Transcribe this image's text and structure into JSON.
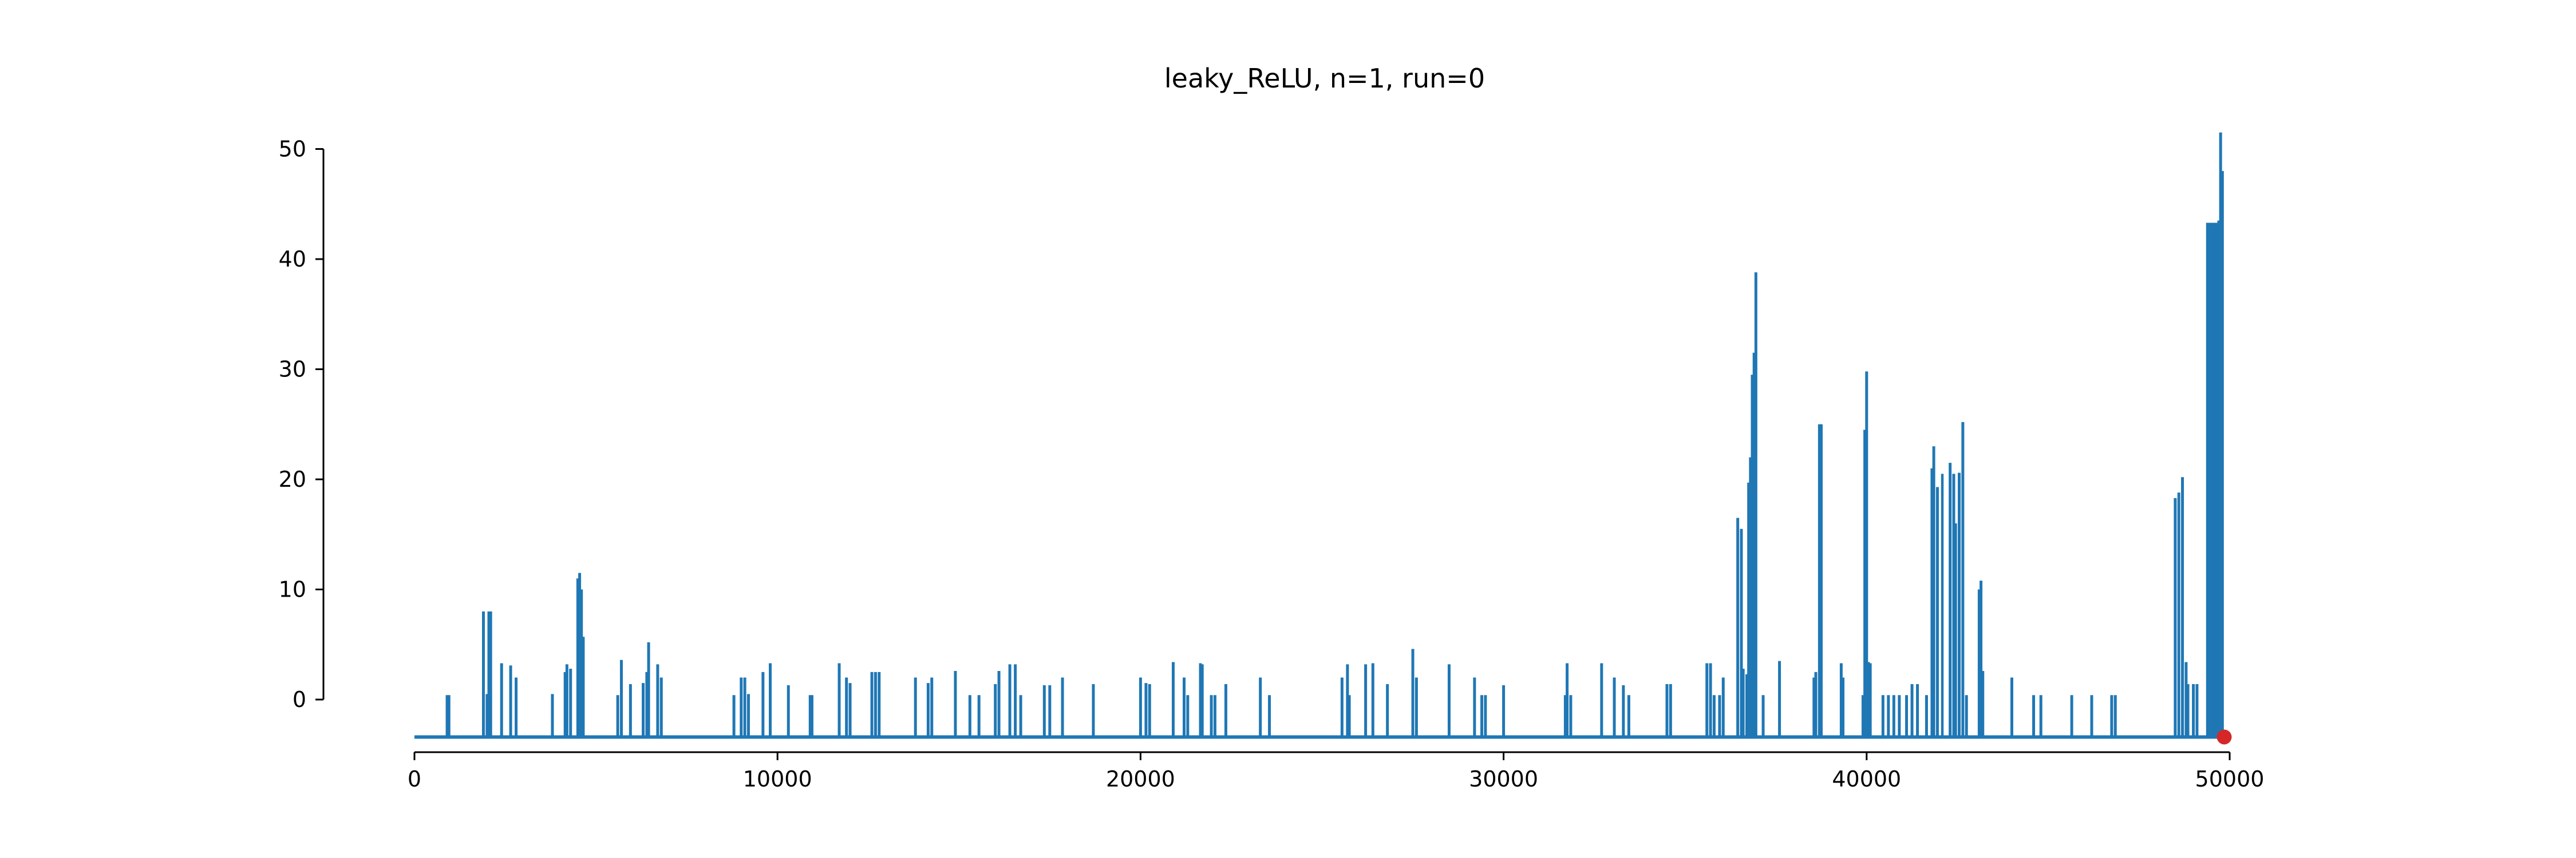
{
  "chart_data": {
    "type": "line",
    "title": "leaky_ReLU, n=1, run=0",
    "xlabel": "",
    "ylabel": "",
    "xlim": [
      0,
      50000
    ],
    "ylim": [
      -3.4,
      51.5
    ],
    "x_ticks": [
      0,
      10000,
      20000,
      30000,
      40000,
      50000
    ],
    "x_tick_labels": [
      "0",
      "10000",
      "20000",
      "30000",
      "40000",
      "50000"
    ],
    "y_ticks": [
      0,
      10,
      20,
      30,
      40,
      50
    ],
    "y_tick_labels": [
      "0",
      "10",
      "20",
      "30",
      "40",
      "50"
    ],
    "grid": false,
    "baseline": -3.4,
    "series": [
      {
        "color": "#1f77b4",
        "spikes": [
          [
            900,
            0.4
          ],
          [
            950,
            0.4
          ],
          [
            1900,
            8
          ],
          [
            2000,
            0.5
          ],
          [
            2050,
            8
          ],
          [
            2100,
            8
          ],
          [
            2400,
            3.3
          ],
          [
            2650,
            3.1
          ],
          [
            2800,
            2
          ],
          [
            3800,
            0.5
          ],
          [
            4150,
            2.5
          ],
          [
            4200,
            3.2
          ],
          [
            4300,
            2.8
          ],
          [
            4500,
            11
          ],
          [
            4550,
            11.5
          ],
          [
            4600,
            10
          ],
          [
            4650,
            5.7
          ],
          [
            5600,
            0.4
          ],
          [
            5700,
            3.6
          ],
          [
            5950,
            1.4
          ],
          [
            6300,
            1.5
          ],
          [
            6400,
            2.5
          ],
          [
            6450,
            5.2
          ],
          [
            6700,
            3.2
          ],
          [
            6800,
            2
          ],
          [
            8800,
            0.4
          ],
          [
            9000,
            2
          ],
          [
            9100,
            2
          ],
          [
            9200,
            0.5
          ],
          [
            9600,
            2.5
          ],
          [
            9800,
            3.3
          ],
          [
            10300,
            1.3
          ],
          [
            10900,
            0.4
          ],
          [
            10950,
            0.4
          ],
          [
            11700,
            3.3
          ],
          [
            11900,
            2
          ],
          [
            12000,
            1.5
          ],
          [
            12600,
            2.5
          ],
          [
            12700,
            2.5
          ],
          [
            12800,
            2.5
          ],
          [
            13800,
            2
          ],
          [
            14150,
            1.5
          ],
          [
            14250,
            2
          ],
          [
            14900,
            2.6
          ],
          [
            15300,
            0.4
          ],
          [
            15550,
            0.4
          ],
          [
            16000,
            1.4
          ],
          [
            16100,
            2.6
          ],
          [
            16400,
            3.2
          ],
          [
            16550,
            3.2
          ],
          [
            16700,
            0.4
          ],
          [
            17350,
            1.3
          ],
          [
            17500,
            1.3
          ],
          [
            17850,
            2
          ],
          [
            18700,
            1.4
          ],
          [
            20000,
            2
          ],
          [
            20150,
            1.5
          ],
          [
            20250,
            1.4
          ],
          [
            20900,
            3.4
          ],
          [
            21200,
            2
          ],
          [
            21300,
            0.4
          ],
          [
            21650,
            3.3
          ],
          [
            21700,
            3.2
          ],
          [
            21950,
            0.4
          ],
          [
            22050,
            0.4
          ],
          [
            22350,
            1.4
          ],
          [
            23300,
            2
          ],
          [
            23550,
            0.4
          ],
          [
            25550,
            2
          ],
          [
            25700,
            3.2
          ],
          [
            25750,
            0.4
          ],
          [
            26200,
            3.2
          ],
          [
            26400,
            3.3
          ],
          [
            26800,
            1.4
          ],
          [
            27500,
            4.6
          ],
          [
            27600,
            2
          ],
          [
            28500,
            3.2
          ],
          [
            29200,
            2
          ],
          [
            29400,
            0.4
          ],
          [
            29500,
            0.4
          ],
          [
            30000,
            1.3
          ],
          [
            31700,
            0.4
          ],
          [
            31750,
            3.3
          ],
          [
            31850,
            0.4
          ],
          [
            32700,
            3.3
          ],
          [
            33050,
            2
          ],
          [
            33300,
            1.3
          ],
          [
            33450,
            0.4
          ],
          [
            34500,
            1.4
          ],
          [
            34600,
            1.4
          ],
          [
            35600,
            3.3
          ],
          [
            35700,
            3.3
          ],
          [
            35800,
            0.4
          ],
          [
            35950,
            0.4
          ],
          [
            36050,
            2
          ],
          [
            36450,
            16.5
          ],
          [
            36550,
            15.5
          ],
          [
            36600,
            2.8
          ],
          [
            36700,
            2.3
          ],
          [
            36750,
            19.7
          ],
          [
            36800,
            22
          ],
          [
            36850,
            29.5
          ],
          [
            36900,
            31.5
          ],
          [
            36950,
            38.8
          ],
          [
            37150,
            0.4
          ],
          [
            37600,
            3.5
          ],
          [
            38550,
            2
          ],
          [
            38600,
            2.5
          ],
          [
            38700,
            25
          ],
          [
            38750,
            25
          ],
          [
            39300,
            3.3
          ],
          [
            39350,
            2
          ],
          [
            39900,
            0.4
          ],
          [
            39950,
            24.5
          ],
          [
            40000,
            29.8
          ],
          [
            40050,
            3.4
          ],
          [
            40100,
            3.3
          ],
          [
            40450,
            0.4
          ],
          [
            40600,
            0.4
          ],
          [
            40750,
            0.4
          ],
          [
            40900,
            0.4
          ],
          [
            41100,
            0.4
          ],
          [
            41250,
            1.4
          ],
          [
            41400,
            1.4
          ],
          [
            41650,
            0.4
          ],
          [
            41800,
            21
          ],
          [
            41850,
            23
          ],
          [
            41950,
            19.3
          ],
          [
            42300,
            21.5
          ],
          [
            42400,
            20.5
          ],
          [
            42450,
            16
          ],
          [
            42550,
            20.6
          ],
          [
            42650,
            25.2
          ],
          [
            42750,
            0.4
          ],
          [
            43100,
            10
          ],
          [
            43150,
            10.8
          ],
          [
            43200,
            2.6
          ],
          [
            44000,
            2
          ],
          [
            44600,
            0.4
          ],
          [
            44800,
            0.4
          ],
          [
            45650,
            0.4
          ],
          [
            46200,
            0.4
          ],
          [
            46750,
            0.4
          ],
          [
            46850,
            0.4
          ],
          [
            48500,
            18.3
          ],
          [
            48600,
            18.8
          ],
          [
            48700,
            20.2
          ],
          [
            48800,
            3.4
          ],
          [
            48850,
            1.4
          ],
          [
            49000,
            1.4
          ],
          [
            49100,
            1.4
          ],
          [
            49400,
            43.3
          ],
          [
            49450,
            43.3
          ],
          [
            49500,
            43.3
          ],
          [
            49550,
            43.3
          ],
          [
            49650,
            43.3
          ],
          [
            49700,
            43.5
          ],
          [
            49750,
            51.5
          ],
          [
            49800,
            48
          ]
        ],
        "blocks": [
          [
            42050,
            42120,
            20.5
          ],
          [
            49350,
            49730,
            43.3
          ]
        ]
      }
    ],
    "final_point": {
      "x": 49850,
      "y": -3.4,
      "color": "#d62728"
    }
  }
}
